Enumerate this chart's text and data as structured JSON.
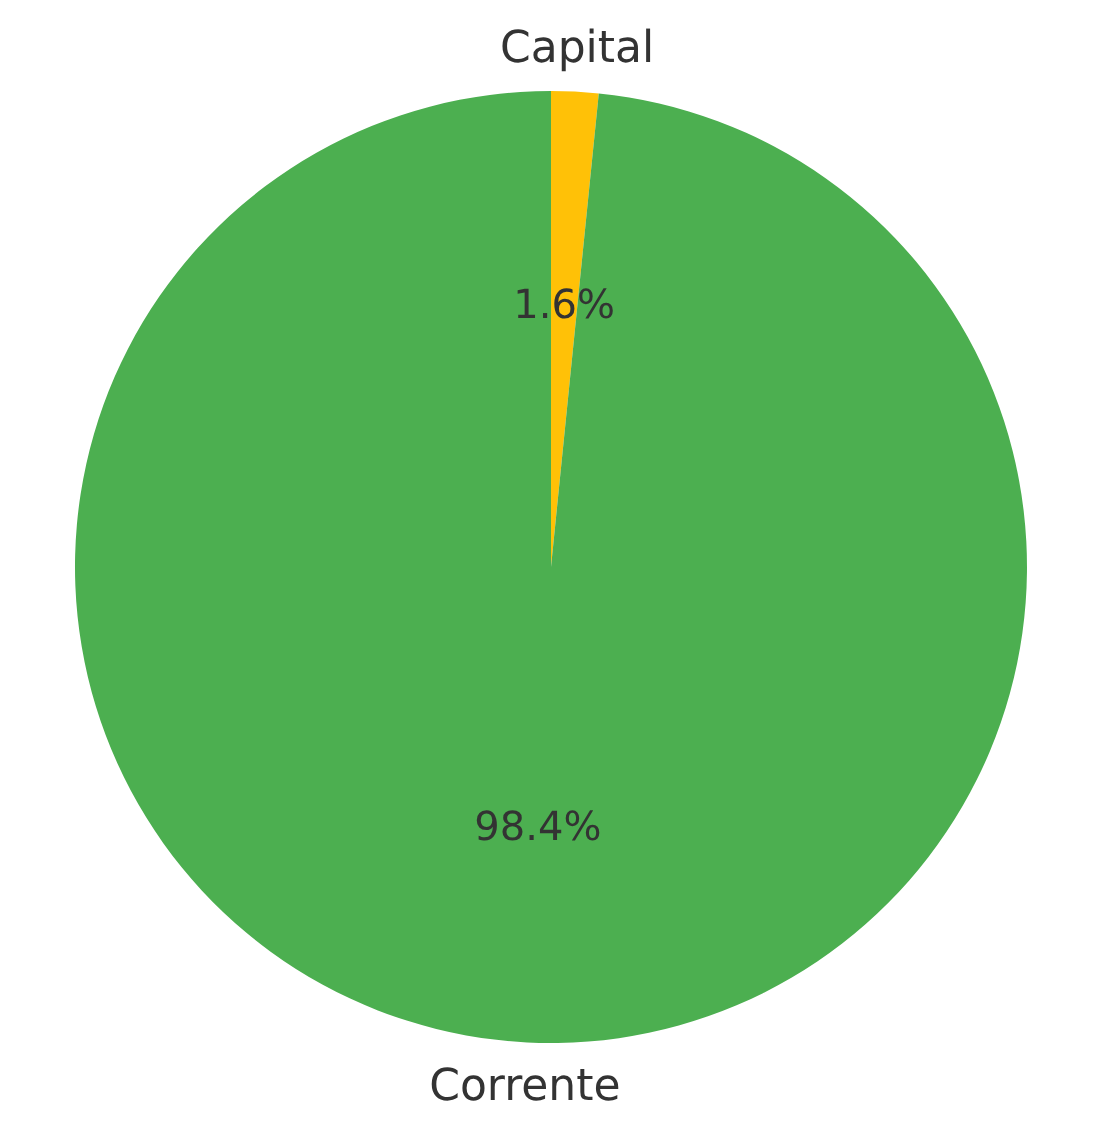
{
  "chart_data": {
    "type": "pie",
    "categories": [
      "Capital",
      "Corrente"
    ],
    "values": [
      1.6,
      98.4
    ],
    "value_labels": [
      "1.6%",
      "98.4%"
    ],
    "colors": [
      "#ffc107",
      "#4caf50"
    ]
  }
}
